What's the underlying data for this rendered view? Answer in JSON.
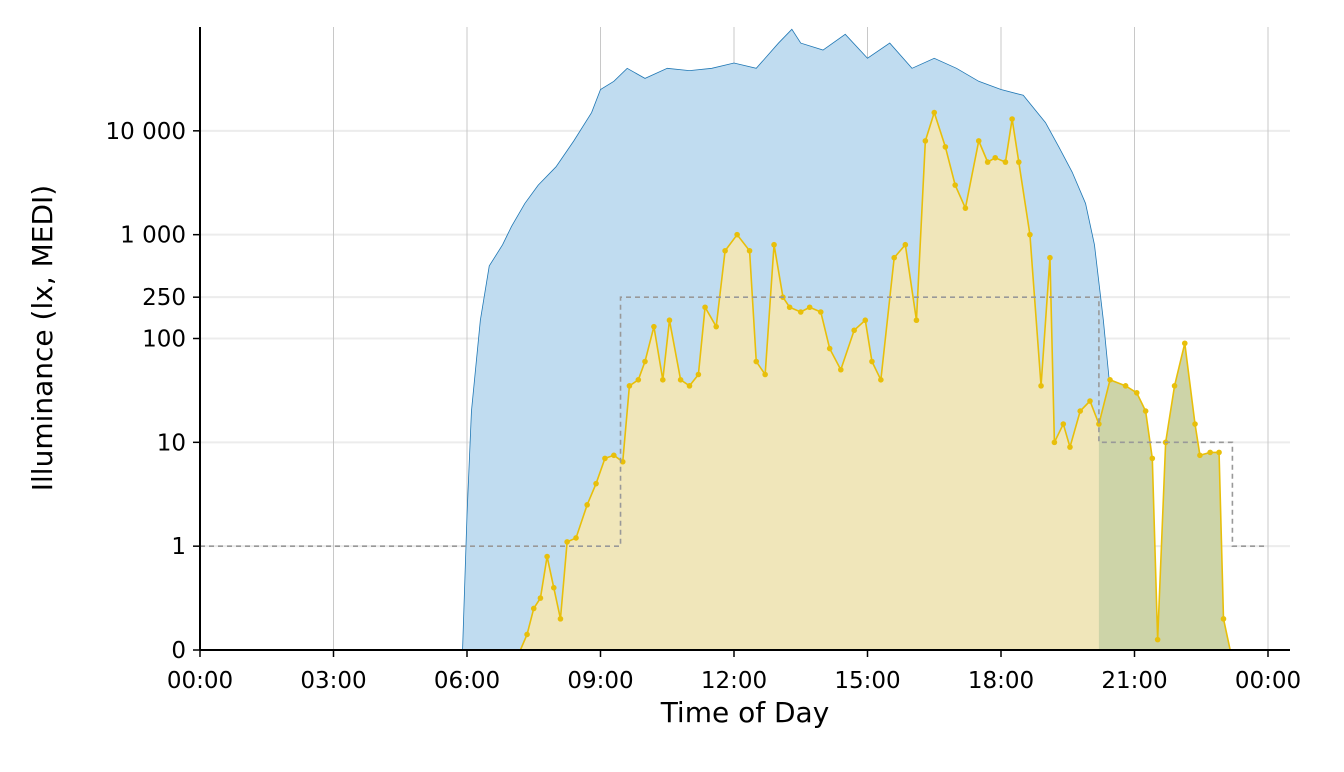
{
  "chart_data": {
    "type": "area",
    "xlabel": "Time of Day",
    "ylabel": "Illuminance (lx, MEDI)",
    "xlim": [
      0,
      24
    ],
    "xticks": [
      {
        "value": 0,
        "label": "00:00"
      },
      {
        "value": 3,
        "label": "03:00"
      },
      {
        "value": 6,
        "label": "06:00"
      },
      {
        "value": 9,
        "label": "09:00"
      },
      {
        "value": 12,
        "label": "12:00"
      },
      {
        "value": 15,
        "label": "15:00"
      },
      {
        "value": 18,
        "label": "18:00"
      },
      {
        "value": 21,
        "label": "21:00"
      },
      {
        "value": 24,
        "label": "00:00"
      }
    ],
    "ylim": [
      0,
      100000
    ],
    "yscale": "pseudo-log",
    "yticks": [
      0,
      1,
      10,
      100,
      250,
      {
        "value": 1000,
        "label": "1 000"
      },
      {
        "value": 10000,
        "label": "10 000"
      }
    ],
    "grid": true,
    "series": [
      {
        "style": "area",
        "color": "#c0dcf0",
        "line_color": "#1f77b4",
        "x": [
          5.9,
          6.0,
          6.1,
          6.3,
          6.5,
          6.8,
          7.0,
          7.3,
          7.6,
          8.0,
          8.4,
          8.8,
          9.0,
          9.3,
          9.6,
          10.0,
          10.5,
          11.0,
          11.5,
          12.0,
          12.5,
          13.0,
          13.3,
          13.5,
          14.0,
          14.5,
          15.0,
          15.5,
          16.0,
          16.5,
          17.0,
          17.5,
          18.0,
          18.5,
          19.0,
          19.3,
          19.6,
          19.9,
          20.1,
          20.3,
          20.5,
          20.7,
          20.9
        ],
        "values": [
          0,
          2,
          20,
          150,
          500,
          800,
          1200,
          2000,
          3000,
          4500,
          8000,
          15000,
          25000,
          30000,
          40000,
          32000,
          40000,
          38000,
          40000,
          45000,
          40000,
          70000,
          95000,
          70000,
          60000,
          85000,
          50000,
          70000,
          40000,
          50000,
          40000,
          30000,
          25000,
          22000,
          12000,
          7000,
          4000,
          2000,
          800,
          150,
          20,
          2,
          0
        ]
      },
      {
        "style": "line-area",
        "color": "#e8bf0a",
        "fill": "#f8e8b0",
        "x": [
          0,
          7.2,
          7.35,
          7.5,
          7.65,
          7.8,
          7.95,
          8.1,
          8.25,
          8.45,
          8.7,
          8.9,
          9.1,
          9.3,
          9.5,
          9.65,
          9.85,
          10.0,
          10.2,
          10.4,
          10.55,
          10.8,
          11.0,
          11.2,
          11.35,
          11.6,
          11.8,
          12.07,
          12.35,
          12.5,
          12.7,
          12.9,
          13.1,
          13.25,
          13.5,
          13.7,
          13.95,
          14.15,
          14.4,
          14.7,
          14.95,
          15.1,
          15.3,
          15.6,
          15.85,
          16.1,
          16.3,
          16.5,
          16.75,
          16.97,
          17.2,
          17.5,
          17.7,
          17.87,
          18.1,
          18.25,
          18.4,
          18.65,
          18.9,
          19.1,
          19.2,
          19.4,
          19.55,
          19.78,
          20.0,
          20.2,
          20.45,
          20.8,
          21.05,
          21.25,
          21.4,
          21.52,
          21.7,
          21.9,
          22.13,
          22.36,
          22.47,
          22.7,
          22.9,
          23.0,
          23.15,
          24
        ],
        "values": [
          0,
          0,
          0.15,
          0.4,
          0.5,
          0.9,
          0.6,
          0.3,
          1.1,
          1.2,
          2.5,
          4,
          7,
          7.5,
          6.5,
          35,
          40,
          60,
          130,
          40,
          150,
          40,
          35,
          45,
          200,
          130,
          700,
          1000,
          700,
          60,
          45,
          800,
          250,
          200,
          180,
          200,
          180,
          80,
          50,
          120,
          150,
          60,
          40,
          600,
          800,
          150,
          8000,
          15000,
          7000,
          3000,
          1800,
          8000,
          5000,
          5500,
          5000,
          13000,
          5000,
          1000,
          35,
          600,
          10,
          15,
          9,
          20,
          25,
          15,
          40,
          35,
          30,
          20,
          7,
          0.1,
          10,
          35,
          90,
          15,
          7.5,
          8,
          8,
          0.3,
          0,
          0
        ]
      },
      {
        "style": "step",
        "color": "#999999",
        "x": [
          0,
          9.45,
          20.2,
          23.2,
          24
        ],
        "values": [
          1,
          250,
          10,
          1,
          1
        ]
      }
    ],
    "fill_regions": [
      {
        "from": 20.2,
        "to": 23.2,
        "color": "#cdd4a8"
      }
    ]
  }
}
